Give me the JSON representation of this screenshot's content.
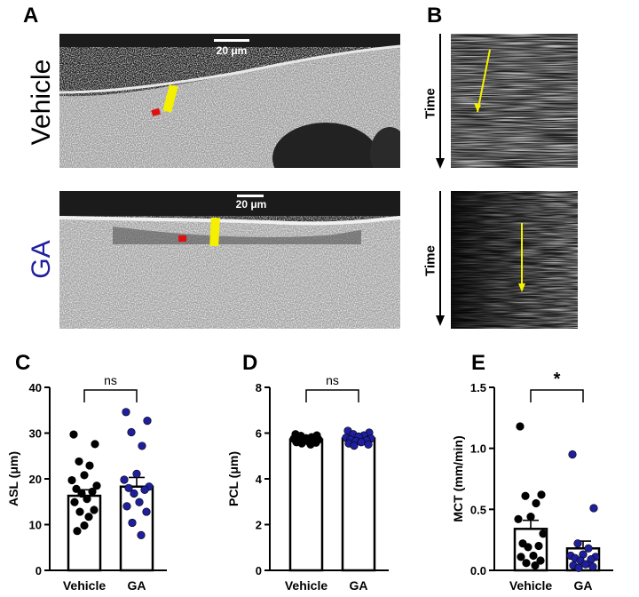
{
  "panels": {
    "a": "A",
    "b": "B",
    "c": "C",
    "d": "D",
    "e": "E"
  },
  "images": {
    "vehicle_label": "Vehicle",
    "ga_label": "GA",
    "scalebar_vehicle": "20 μm",
    "scalebar_ga": "20 μm",
    "kymo_time_top": "Time",
    "kymo_time_bottom": "Time",
    "colors": {
      "vehicle_label": "#000000",
      "ga_label": "#1f1f9e",
      "marker": "#f5f000",
      "dot": "#e01010"
    }
  },
  "chart_data": [
    {
      "id": "C",
      "type": "bar",
      "categories": [
        "Vehicle",
        "GA"
      ],
      "ylabel": "ASL (μm)",
      "ylim": [
        0,
        40
      ],
      "yticks": [
        "0",
        "10",
        "20",
        "30",
        "40"
      ],
      "means": [
        16.3,
        18.3
      ],
      "sem": [
        1.3,
        2.0
      ],
      "points": [
        [
          29.7,
          27.6,
          23.8,
          22.9,
          20.8,
          19.7,
          18.5,
          17.8,
          17.2,
          16.8,
          15.6,
          14.9,
          13.2,
          12.8,
          11.7,
          9.8,
          8.6
        ],
        [
          34.6,
          32.7,
          30.2,
          27.2,
          21.1,
          19.8,
          18.3,
          18.0,
          17.6,
          16.8,
          14.9,
          14.0,
          12.8,
          10.4,
          7.7
        ]
      ],
      "significance": "ns",
      "colors": [
        "#000000",
        "#1f1f9e"
      ]
    },
    {
      "id": "D",
      "type": "bar",
      "categories": [
        "Vehicle",
        "GA"
      ],
      "ylabel": "PCL (μm)",
      "ylim": [
        0,
        8
      ],
      "yticks": [
        "0",
        "2",
        "4",
        "6",
        "8"
      ],
      "means": [
        5.72,
        5.76
      ],
      "sem": [
        0.05,
        0.05
      ],
      "points": [
        [
          5.95,
          5.9,
          5.88,
          5.82,
          5.78,
          5.75,
          5.72,
          5.7,
          5.68,
          5.65,
          5.62,
          5.6,
          5.58,
          5.55,
          5.5
        ],
        [
          6.1,
          6.02,
          5.95,
          5.9,
          5.85,
          5.8,
          5.76,
          5.72,
          5.68,
          5.65,
          5.6,
          5.55,
          5.5,
          5.45
        ]
      ],
      "significance": "ns",
      "colors": [
        "#000000",
        "#1f1f9e"
      ]
    },
    {
      "id": "E",
      "type": "bar",
      "categories": [
        "Vehicle",
        "GA"
      ],
      "ylabel": "MCT (mm/min)",
      "ylim": [
        0,
        1.5
      ],
      "yticks": [
        "0.0",
        "0.5",
        "1.0",
        "1.5"
      ],
      "means": [
        0.34,
        0.18
      ],
      "sem": [
        0.07,
        0.06
      ],
      "points": [
        [
          1.18,
          0.62,
          0.61,
          0.55,
          0.44,
          0.42,
          0.3,
          0.22,
          0.2,
          0.19,
          0.12,
          0.11,
          0.08,
          0.06,
          0.04
        ],
        [
          0.95,
          0.51,
          0.22,
          0.18,
          0.13,
          0.12,
          0.11,
          0.1,
          0.09,
          0.08,
          0.05,
          0.04,
          0.03,
          0.02
        ]
      ],
      "significance": "*",
      "colors": [
        "#000000",
        "#1f1f9e"
      ]
    }
  ]
}
